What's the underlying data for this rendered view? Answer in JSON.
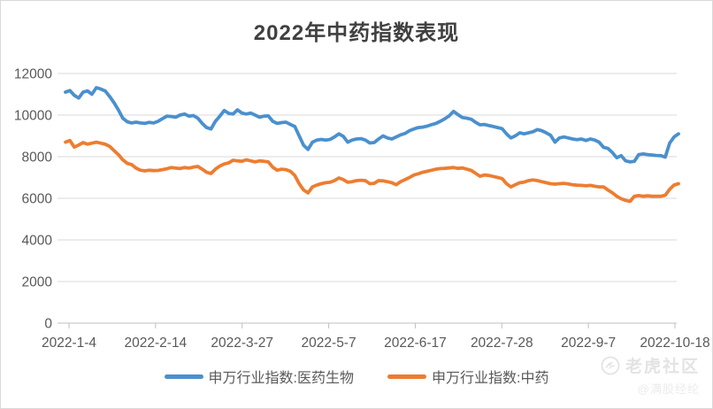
{
  "title": "2022年中药指数表现",
  "legend": {
    "entries": [
      {
        "label": "申万行业指数:医药生物",
        "color": "#4a90ce"
      },
      {
        "label": "申万行业指数:中药",
        "color": "#ed7d31"
      }
    ]
  },
  "watermark": {
    "brand": "老虎社区",
    "handle": "@满股经纶",
    "logo_icon": "tiger-circle-icon"
  },
  "colors": {
    "title_text": "#404040",
    "axis_text": "#595959",
    "gridline": "#d9d9d9",
    "axis_line": "#bfbfbf",
    "series_blue": "#4a90ce",
    "series_orange": "#ed7d31"
  },
  "chart_data": {
    "type": "line",
    "title": "2022年中药指数表现",
    "x_range": [
      "2022-1-4",
      "2022-10-18"
    ],
    "x_tick_labels": [
      "2022-1-4",
      "2022-2-14",
      "2022-3-27",
      "2022-5-7",
      "2022-6-17",
      "2022-7-28",
      "2022-9-7",
      "2022-10-18"
    ],
    "y_ticks": [
      0,
      2000,
      4000,
      6000,
      8000,
      10000,
      12000
    ],
    "ylim": [
      0,
      12000
    ],
    "grid": "horizontal-only",
    "legend_position": "bottom",
    "sampling_note": "values sampled at evenly spaced trading dates across the x range",
    "series": [
      {
        "name": "申万行业指数:医药生物",
        "color": "#4a90ce",
        "values": [
          11100,
          11180,
          10950,
          10820,
          11100,
          11160,
          11000,
          11320,
          11250,
          11160,
          10900,
          10600,
          10250,
          9850,
          9680,
          9620,
          9660,
          9620,
          9600,
          9650,
          9620,
          9700,
          9830,
          9950,
          9930,
          9900,
          10000,
          10050,
          9950,
          9980,
          9850,
          9600,
          9400,
          9330,
          9700,
          9950,
          10220,
          10080,
          10050,
          10250,
          10100,
          10050,
          10100,
          10000,
          9900,
          9950,
          9960,
          9700,
          9600,
          9640,
          9660,
          9550,
          9450,
          9000,
          8550,
          8350,
          8700,
          8800,
          8830,
          8800,
          8830,
          8950,
          9100,
          8980,
          8700,
          8800,
          8850,
          8870,
          8800,
          8660,
          8680,
          8850,
          9000,
          8900,
          8850,
          8950,
          9050,
          9120,
          9250,
          9330,
          9400,
          9420,
          9470,
          9540,
          9600,
          9700,
          9820,
          9960,
          10180,
          10020,
          9880,
          9850,
          9800,
          9650,
          9530,
          9550,
          9500,
          9450,
          9400,
          9350,
          9100,
          8900,
          9000,
          9150,
          9100,
          9150,
          9200,
          9300,
          9250,
          9150,
          9030,
          8700,
          8900,
          8950,
          8900,
          8850,
          8820,
          8850,
          8780,
          8850,
          8800,
          8700,
          8450,
          8400,
          8200,
          7950,
          8050,
          7800,
          7750,
          7780,
          8100,
          8130,
          8100,
          8080,
          8060,
          8050,
          7980,
          8650,
          8950,
          9100
        ]
      },
      {
        "name": "申万行业指数:中药",
        "color": "#ed7d31",
        "values": [
          8700,
          8780,
          8460,
          8560,
          8680,
          8600,
          8650,
          8700,
          8650,
          8600,
          8500,
          8300,
          8100,
          7850,
          7680,
          7620,
          7450,
          7350,
          7320,
          7350,
          7330,
          7340,
          7380,
          7420,
          7480,
          7450,
          7430,
          7480,
          7450,
          7500,
          7530,
          7400,
          7250,
          7190,
          7400,
          7550,
          7650,
          7700,
          7830,
          7800,
          7780,
          7850,
          7800,
          7750,
          7800,
          7780,
          7750,
          7500,
          7350,
          7400,
          7380,
          7300,
          7100,
          6700,
          6400,
          6260,
          6550,
          6640,
          6700,
          6750,
          6770,
          6850,
          6980,
          6900,
          6770,
          6800,
          6850,
          6870,
          6850,
          6700,
          6720,
          6850,
          6840,
          6800,
          6750,
          6650,
          6800,
          6900,
          7000,
          7120,
          7180,
          7250,
          7300,
          7350,
          7400,
          7430,
          7440,
          7460,
          7480,
          7440,
          7460,
          7400,
          7340,
          7200,
          7060,
          7120,
          7100,
          7050,
          7000,
          6950,
          6700,
          6550,
          6650,
          6750,
          6780,
          6850,
          6880,
          6850,
          6800,
          6750,
          6700,
          6680,
          6700,
          6720,
          6690,
          6650,
          6630,
          6620,
          6600,
          6620,
          6580,
          6550,
          6550,
          6400,
          6270,
          6100,
          5980,
          5900,
          5850,
          6100,
          6130,
          6100,
          6120,
          6100,
          6100,
          6100,
          6150,
          6430,
          6640,
          6700
        ]
      }
    ]
  }
}
